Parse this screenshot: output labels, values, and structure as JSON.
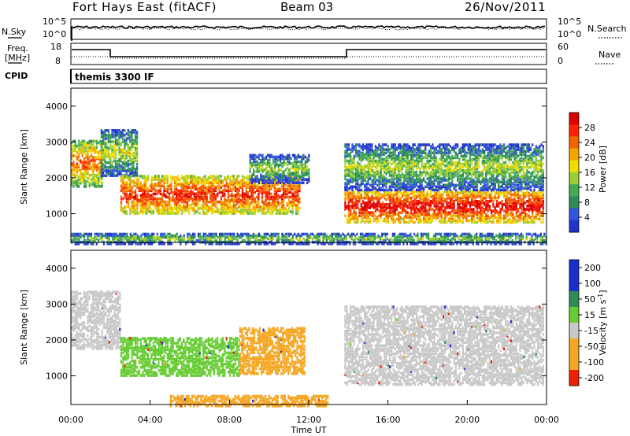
{
  "header": {
    "station": "Fort Hays East (fitACF)",
    "beam": "Beam 03",
    "date": "26/Nov/2011"
  },
  "noise_panel": {
    "left_label": "N.Sky",
    "right_label": "N.Search",
    "left_ticks": [
      "10^5",
      "10^0"
    ],
    "right_ticks": [
      "10^5",
      "10^0"
    ]
  },
  "freq_panel": {
    "left_label": [
      "Freq.",
      "[MHz]"
    ],
    "right_label": "Nave",
    "left_ticks": [
      "18",
      "8"
    ],
    "right_ticks": [
      "60",
      "0"
    ],
    "cpid_label": "CPID",
    "cpid_text": "themis 3300 IF"
  },
  "colors": {
    "power": [
      "#2233cc",
      "#3355dd",
      "#2e8a57",
      "#44aa55",
      "#9acd32",
      "#eedd00",
      "#f5a500",
      "#ee6600",
      "#ff2200",
      "#dd0000"
    ],
    "velocity": {
      "strong_pos": "#1a2ecc",
      "pos": "#2e8b57",
      "weak_pos": "#66cc33",
      "ground": "#c8c8c8",
      "neg": "#f5a623",
      "strong_neg": "#ee2200"
    }
  },
  "chart_data": [
    {
      "type": "heatmap",
      "panel": "power",
      "ylabel": "Slant Range [km]",
      "yticks": [
        "1000",
        "2000",
        "3000",
        "4000"
      ],
      "ylim": [
        200,
        4500
      ],
      "colorbar": {
        "label": "Power [dB]",
        "ticks": [
          "4",
          "8",
          "12",
          "16",
          "20",
          "24",
          "28"
        ],
        "range": [
          0,
          32
        ]
      },
      "xlim": [
        0,
        24
      ],
      "echo_regions": [
        {
          "t": [
            0.0,
            1.6
          ],
          "range_lo": 1800,
          "range_hi": 3100,
          "power": 18
        },
        {
          "t": [
            1.5,
            3.3
          ],
          "range_lo": 2100,
          "range_hi": 3400,
          "power": 10
        },
        {
          "t": [
            2.5,
            11.5
          ],
          "range_lo": 1050,
          "range_hi": 2100,
          "power": 22
        },
        {
          "t": [
            9.0,
            12.0
          ],
          "range_lo": 1900,
          "range_hi": 2700,
          "power": 8
        },
        {
          "t": [
            13.8,
            23.8
          ],
          "range_lo": 800,
          "range_hi": 1700,
          "power": 24
        },
        {
          "t": [
            13.8,
            23.8
          ],
          "range_lo": 1700,
          "range_hi": 3000,
          "power": 9
        },
        {
          "t": [
            0.0,
            24.0
          ],
          "range_lo": 200,
          "range_hi": 500,
          "power": 8
        }
      ]
    },
    {
      "type": "heatmap",
      "panel": "velocity",
      "ylabel": "Slant Range [km]",
      "yticks": [
        "1000",
        "2000",
        "3000",
        "4000"
      ],
      "ylim": [
        200,
        4500
      ],
      "xlabel": "Time UT",
      "xticks": [
        "00:00",
        "04:00",
        "08:00",
        "12:00",
        "16:00",
        "20:00",
        "00:00"
      ],
      "xlim": [
        0,
        24
      ],
      "colorbar": {
        "label": "Velocity [m s-1]",
        "ticks": [
          "200",
          "100",
          "50",
          "15",
          "-15",
          "-50",
          "-100",
          "-200"
        ]
      },
      "echo_regions": [
        {
          "t": [
            0.0,
            2.5
          ],
          "range_lo": 1800,
          "range_hi": 3400,
          "velocity": 0
        },
        {
          "t": [
            2.5,
            8.5
          ],
          "range_lo": 1050,
          "range_hi": 2100,
          "velocity": 30
        },
        {
          "t": [
            8.5,
            11.8
          ],
          "range_lo": 1100,
          "range_hi": 2400,
          "velocity": -30
        },
        {
          "t": [
            13.8,
            23.8
          ],
          "range_lo": 800,
          "range_hi": 3000,
          "velocity": 0
        },
        {
          "t": [
            5.0,
            13.0
          ],
          "range_lo": 200,
          "range_hi": 500,
          "velocity": -30
        }
      ]
    }
  ],
  "power_colorbar_label": "Power [dB]",
  "velocity_colorbar_label": "Velocity [m s",
  "velocity_colorbar_sup": "-1",
  "velocity_colorbar_suffix": "]"
}
